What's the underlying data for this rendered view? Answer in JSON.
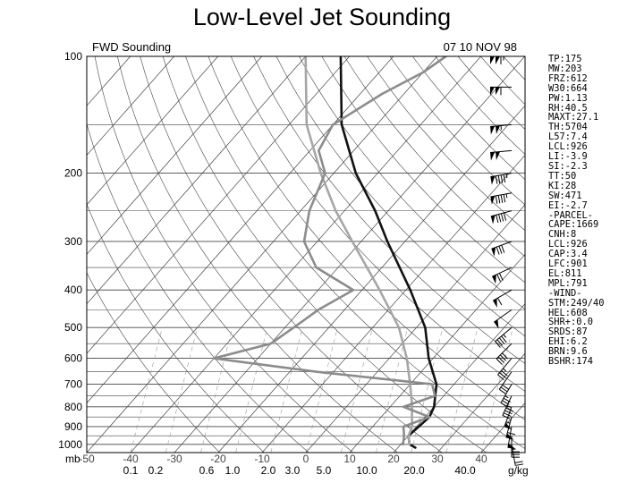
{
  "slide": {
    "title": "Low-Level Jet Sounding"
  },
  "colors": {
    "background": "#ffffff",
    "ink": "#000000",
    "temperature": "#111111",
    "dewpoint": "#8c8c8c",
    "parcel": "#a6a6a6",
    "grid": "#444444",
    "dashed": "#999999"
  },
  "chart_data": {
    "type": "skew-t log-p",
    "label_left": "FWD Sounding",
    "label_right": "07 10 NOV 98",
    "pressure_levels": [
      100,
      200,
      300,
      400,
      500,
      600,
      700,
      800,
      900,
      1000
    ],
    "pressure_axis_label": "mb",
    "temperature_ticks": [
      "-50",
      "-40",
      "-30",
      "-20",
      "-10",
      "0",
      "10",
      "20",
      "30",
      "40"
    ],
    "mixing_ratio_ticks": [
      "0.1",
      "0.2",
      "0.6",
      "1.0",
      "2.0",
      "3.0",
      "5.0",
      "10.0",
      "20.0",
      "40.0"
    ],
    "mixing_ratio_unit": "g/kg",
    "ylim": [
      1050,
      100
    ],
    "xlim": [
      -50,
      50
    ],
    "skew_degC_per_ln_p": 34,
    "series": [
      {
        "key": "temperature",
        "points": [
          [
            1020,
            24
          ],
          [
            1000,
            22
          ],
          [
            950,
            20
          ],
          [
            900,
            20.5
          ],
          [
            850,
            21
          ],
          [
            800,
            20
          ],
          [
            700,
            16
          ],
          [
            600,
            9
          ],
          [
            500,
            2
          ],
          [
            400,
            -9
          ],
          [
            300,
            -24
          ],
          [
            250,
            -33
          ],
          [
            200,
            -45
          ],
          [
            150,
            -58
          ],
          [
            100,
            -72
          ]
        ]
      },
      {
        "key": "parcel",
        "points": [
          [
            1000,
            22
          ],
          [
            950,
            20
          ],
          [
            900,
            19
          ],
          [
            850,
            17
          ],
          [
            800,
            15
          ],
          [
            700,
            10
          ],
          [
            600,
            4
          ],
          [
            500,
            -4
          ],
          [
            400,
            -16
          ],
          [
            300,
            -32
          ],
          [
            250,
            -42
          ],
          [
            200,
            -53
          ],
          [
            150,
            -66
          ],
          [
            100,
            -80
          ]
        ]
      },
      {
        "key": "dewpoint",
        "points": [
          [
            1000,
            20.5
          ],
          [
            950,
            19
          ],
          [
            900,
            17
          ],
          [
            850,
            21
          ],
          [
            800,
            13
          ],
          [
            750,
            18
          ],
          [
            700,
            15
          ],
          [
            650,
            -14
          ],
          [
            600,
            -40
          ],
          [
            550,
            -30
          ],
          [
            500,
            -28
          ],
          [
            450,
            -26
          ],
          [
            400,
            -22
          ],
          [
            350,
            -35
          ],
          [
            300,
            -43
          ],
          [
            250,
            -48
          ],
          [
            200,
            -52
          ],
          [
            175,
            -58
          ],
          [
            150,
            -60
          ],
          [
            125,
            -55
          ],
          [
            110,
            -50
          ],
          [
            100,
            -48
          ]
        ]
      }
    ],
    "wind_barbs": [
      {
        "p": 100,
        "dir": 270,
        "spd": 115
      },
      {
        "p": 120,
        "dir": 270,
        "spd": 110
      },
      {
        "p": 150,
        "dir": 265,
        "spd": 105
      },
      {
        "p": 175,
        "dir": 265,
        "spd": 100
      },
      {
        "p": 200,
        "dir": 260,
        "spd": 95
      },
      {
        "p": 225,
        "dir": 260,
        "spd": 95
      },
      {
        "p": 250,
        "dir": 255,
        "spd": 90
      },
      {
        "p": 300,
        "dir": 250,
        "spd": 80
      },
      {
        "p": 350,
        "dir": 245,
        "spd": 70
      },
      {
        "p": 400,
        "dir": 240,
        "spd": 60
      },
      {
        "p": 450,
        "dir": 235,
        "spd": 50
      },
      {
        "p": 500,
        "dir": 230,
        "spd": 45
      },
      {
        "p": 550,
        "dir": 225,
        "spd": 40
      },
      {
        "p": 600,
        "dir": 220,
        "spd": 35
      },
      {
        "p": 650,
        "dir": 215,
        "spd": 30
      },
      {
        "p": 700,
        "dir": 210,
        "spd": 35
      },
      {
        "p": 750,
        "dir": 205,
        "spd": 45
      },
      {
        "p": 800,
        "dir": 200,
        "spd": 55
      },
      {
        "p": 850,
        "dir": 195,
        "spd": 60
      },
      {
        "p": 900,
        "dir": 190,
        "spd": 50
      },
      {
        "p": 950,
        "dir": 180,
        "spd": 35
      },
      {
        "p": 1000,
        "dir": 170,
        "spd": 20
      }
    ],
    "indices": [
      "TP:175",
      "MW:203",
      "FRZ:612",
      "W30:664",
      "PW:1.13",
      "RH:40.5",
      "MAXT:27.1",
      "TH:5704",
      "L57:7.4",
      "LCL:926",
      "LI:-3.9",
      "SI:-2.3",
      "TT:50",
      "KI:28",
      "SW:471",
      "EI:-2.7",
      "-PARCEL-",
      "CAPE:1669",
      "CNH:8",
      "LCL:926",
      "CAP:3.4",
      "LFC:901",
      "EL:811",
      "MPL:791",
      "-WIND-",
      "STM:249/40",
      "HEL:608",
      "SHR+:0.0",
      "SRDS:87",
      "EHI:6.2",
      "BRN:9.6",
      "BSHR:174"
    ]
  }
}
